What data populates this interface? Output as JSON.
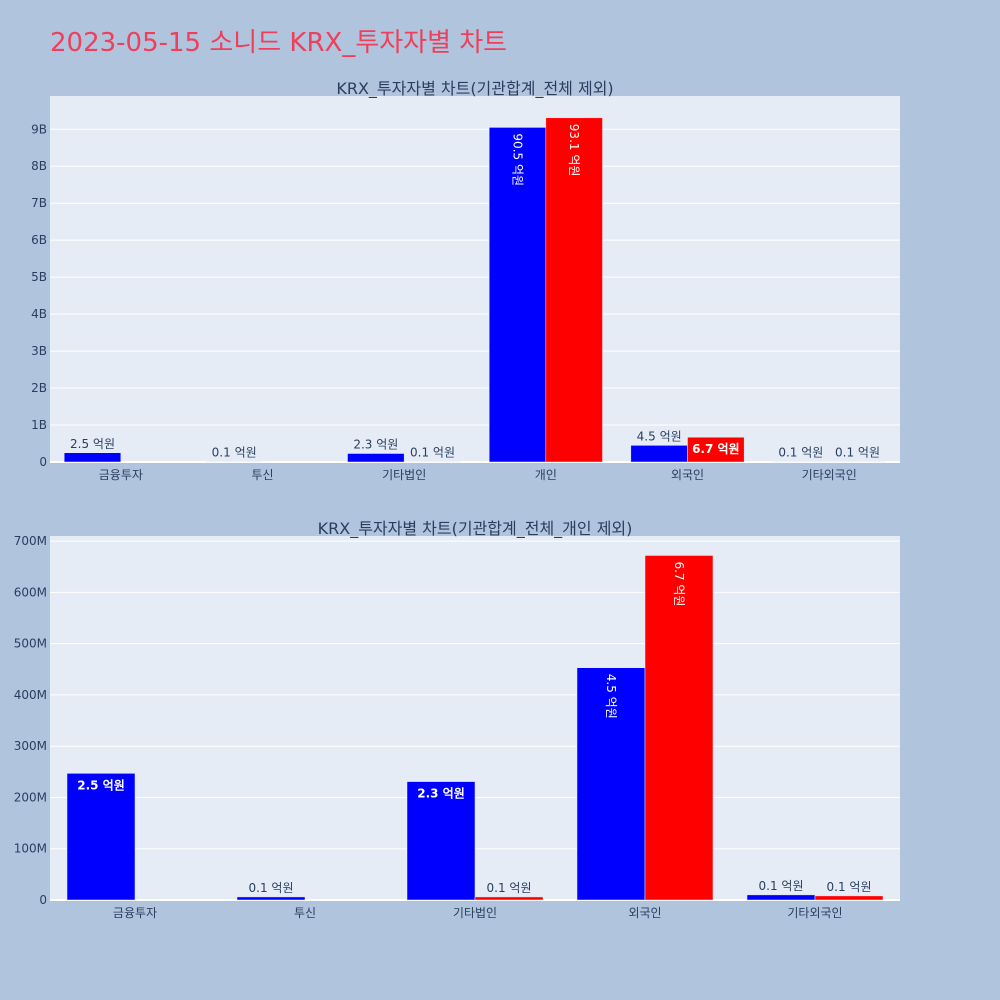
{
  "page_title": "2023-05-15 소니드 KRX_투자자별 차트",
  "chart_data": [
    {
      "type": "bar",
      "title": "KRX_투자자별 차트(기관합계_전체 제외)",
      "categories": [
        "금융투자",
        "투신",
        "기타법인",
        "개인",
        "외국인",
        "기타외국인"
      ],
      "ylim": [
        0,
        9900000000
      ],
      "yticks": [
        0,
        1000000000,
        2000000000,
        3000000000,
        4000000000,
        5000000000,
        6000000000,
        7000000000,
        8000000000,
        9000000000
      ],
      "ytick_labels": [
        "0",
        "1B",
        "2B",
        "3B",
        "4B",
        "5B",
        "6B",
        "7B",
        "8B",
        "9B"
      ],
      "grid": true,
      "series": [
        {
          "color": "#0000ff",
          "values": [
            250000000,
            10000000,
            230000000,
            9050000000,
            450000000,
            10000000
          ],
          "labels": [
            "2.5 억원",
            "0.1 억원",
            "2.3 억원",
            "90.5 억원",
            "4.5 억원",
            "0.1 억원"
          ]
        },
        {
          "color": "#ff0000",
          "values": [
            0,
            0,
            10000000,
            9310000000,
            670000000,
            10000000
          ],
          "labels": [
            "",
            "",
            "0.1 억원",
            "93.1 억원",
            "6.7 억원",
            "0.1 억원"
          ]
        }
      ]
    },
    {
      "type": "bar",
      "title": "KRX_투자자별 차트(기관합계_전체_개인 제외)",
      "categories": [
        "금융투자",
        "투신",
        "기타법인",
        "외국인",
        "기타외국인"
      ],
      "ylim": [
        0,
        710000000
      ],
      "yticks": [
        0,
        100000000,
        200000000,
        300000000,
        400000000,
        500000000,
        600000000,
        700000000
      ],
      "ytick_labels": [
        "0",
        "100M",
        "200M",
        "300M",
        "400M",
        "500M",
        "600M",
        "700M"
      ],
      "grid": true,
      "series": [
        {
          "color": "#0000ff",
          "values": [
            247000000,
            6000000,
            231000000,
            453000000,
            10000000
          ],
          "labels": [
            "2.5 억원",
            "0.1 억원",
            "2.3 억원",
            "4.5 억원",
            "0.1 억원"
          ]
        },
        {
          "color": "#ff0000",
          "values": [
            0,
            0,
            6000000,
            672000000,
            8000000
          ],
          "labels": [
            "",
            "",
            "0.1 억원",
            "6.7 억원",
            "0.1 억원"
          ]
        }
      ]
    }
  ]
}
